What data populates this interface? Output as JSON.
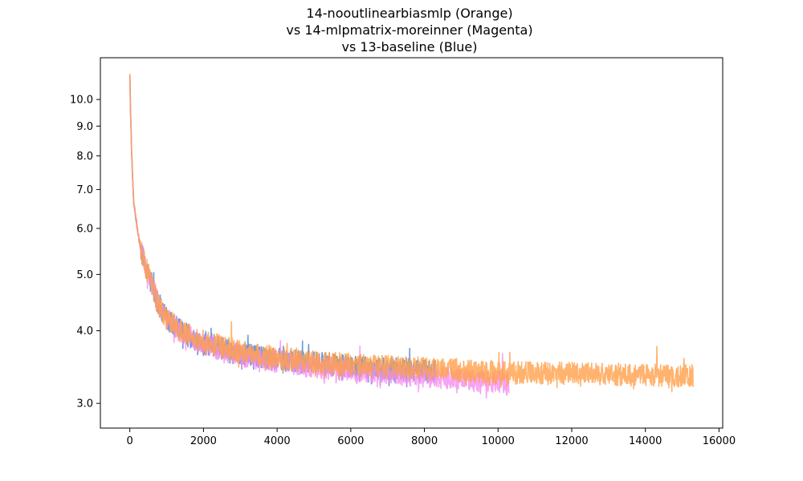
{
  "chart_data": {
    "type": "line",
    "title_lines": [
      "14-nooutlinearbiasmlp (Orange)",
      "vs 14-mlpmatrix-moreinner (Magenta)",
      "vs 13-baseline (Blue)"
    ],
    "xlabel": "",
    "ylabel": "",
    "y_scale": "log",
    "xlim": [
      -800,
      16100
    ],
    "ylim": [
      2.72,
      11.8
    ],
    "x_ticks": [
      0,
      2000,
      4000,
      6000,
      8000,
      10000,
      12000,
      14000,
      16000
    ],
    "x_tick_labels": [
      "0",
      "2000",
      "4000",
      "6000",
      "8000",
      "10000",
      "12000",
      "14000",
      "16000"
    ],
    "y_ticks": [
      3.0,
      4.0,
      5.0,
      6.0,
      7.0,
      8.0,
      9.0,
      10.0
    ],
    "y_tick_labels": [
      "3.0",
      "4.0",
      "5.0",
      "6.0",
      "7.0",
      "8.0",
      "9.0",
      "10.0"
    ],
    "grid": false,
    "legend": "none",
    "series": [
      {
        "color": "#4a7fd4",
        "x": [
          0,
          20,
          50,
          100,
          200,
          300,
          500,
          800,
          1000,
          1500,
          2000,
          2500,
          3000,
          3500,
          4000,
          5000,
          6000,
          7000,
          8000,
          8300
        ],
        "y": [
          11.0,
          9.5,
          8.0,
          6.7,
          6.0,
          5.5,
          5.0,
          4.4,
          4.2,
          3.95,
          3.82,
          3.74,
          3.67,
          3.62,
          3.58,
          3.52,
          3.48,
          3.45,
          3.42,
          3.41
        ]
      },
      {
        "color": "#f58cf0",
        "x": [
          0,
          20,
          50,
          100,
          200,
          300,
          500,
          800,
          1000,
          1500,
          2000,
          2500,
          3000,
          3500,
          4000,
          5000,
          6000,
          7000,
          8000,
          8500,
          9000,
          9500,
          10000,
          10300
        ],
        "y": [
          11.0,
          9.5,
          8.0,
          6.7,
          6.0,
          5.5,
          5.0,
          4.4,
          4.2,
          3.93,
          3.8,
          3.71,
          3.64,
          3.58,
          3.54,
          3.47,
          3.42,
          3.38,
          3.35,
          3.33,
          3.3,
          3.28,
          3.27,
          3.26
        ]
      },
      {
        "color": "#ffa04a",
        "x": [
          0,
          20,
          50,
          100,
          200,
          300,
          500,
          800,
          1000,
          1500,
          2000,
          2500,
          3000,
          3500,
          4000,
          5000,
          6000,
          7000,
          8000,
          9000,
          10000,
          11000,
          12000,
          13000,
          14000,
          15000,
          15300
        ],
        "y": [
          11.0,
          9.5,
          8.0,
          6.7,
          6.0,
          5.5,
          5.0,
          4.4,
          4.2,
          3.96,
          3.84,
          3.76,
          3.69,
          3.64,
          3.6,
          3.54,
          3.5,
          3.47,
          3.45,
          3.42,
          3.4,
          3.39,
          3.38,
          3.37,
          3.36,
          3.35,
          3.35
        ]
      }
    ]
  }
}
